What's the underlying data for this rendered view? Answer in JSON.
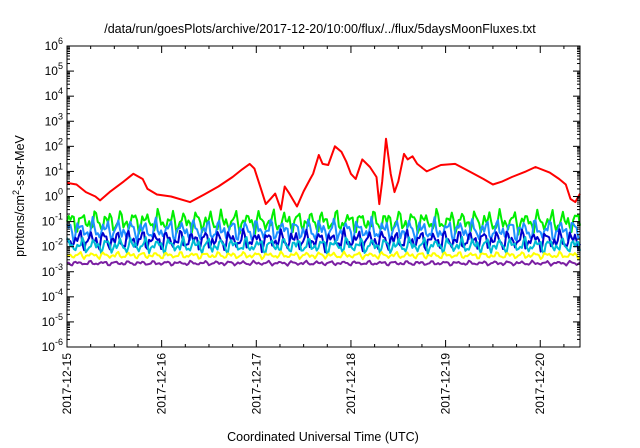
{
  "chart_data": {
    "type": "line",
    "title": "/data/run/goesPlots/archive/2017-12-20/10:00/flux/../flux/5daysMoonFluxes.txt",
    "xlabel": "Coordinated Universal Time (UTC)",
    "ylabel": "protons/cm²-s-sr-MeV",
    "yscale": "log",
    "ylim": [
      1e-06,
      1000000.0
    ],
    "xlim": [
      0,
      5.42
    ],
    "y_ticks": [
      {
        "value": -6,
        "base": "10",
        "exp": "-6"
      },
      {
        "value": -5,
        "base": "10",
        "exp": "-5"
      },
      {
        "value": -4,
        "base": "10",
        "exp": "-4"
      },
      {
        "value": -3,
        "base": "10",
        "exp": "-3"
      },
      {
        "value": -2,
        "base": "10",
        "exp": "-2"
      },
      {
        "value": -1,
        "base": "10",
        "exp": "-1"
      },
      {
        "value": 0,
        "base": "10",
        "exp": "0"
      },
      {
        "value": 1,
        "base": "10",
        "exp": "1"
      },
      {
        "value": 2,
        "base": "10",
        "exp": "2"
      },
      {
        "value": 3,
        "base": "10",
        "exp": "3"
      },
      {
        "value": 4,
        "base": "10",
        "exp": "4"
      },
      {
        "value": 5,
        "base": "10",
        "exp": "5"
      },
      {
        "value": 6,
        "base": "10",
        "exp": "6"
      }
    ],
    "x_ticks": [
      {
        "value": 0,
        "label": "2017-12-15"
      },
      {
        "value": 1,
        "label": "2017-12-16"
      },
      {
        "value": 2,
        "label": "2017-12-17"
      },
      {
        "value": 3,
        "label": "2017-12-18"
      },
      {
        "value": 4,
        "label": "2017-12-19"
      },
      {
        "value": 5,
        "label": "2017-12-20"
      }
    ],
    "grid": false,
    "legend": "none",
    "series": [
      {
        "color": "#ff0000",
        "points": [
          [
            0,
            3.5
          ],
          [
            0.1,
            3.0
          ],
          [
            0.2,
            1.5
          ],
          [
            0.3,
            1.0
          ],
          [
            0.35,
            0.7
          ],
          [
            0.45,
            1.5
          ],
          [
            0.6,
            4.0
          ],
          [
            0.7,
            8.0
          ],
          [
            0.8,
            5.0
          ],
          [
            0.85,
            2.0
          ],
          [
            0.95,
            1.2
          ],
          [
            1.1,
            1.0
          ],
          [
            1.3,
            0.6
          ],
          [
            1.45,
            1.2
          ],
          [
            1.6,
            2.5
          ],
          [
            1.75,
            6.0
          ],
          [
            1.85,
            12.0
          ],
          [
            1.93,
            20.0
          ],
          [
            1.98,
            13.0
          ],
          [
            2.05,
            2.0
          ],
          [
            2.1,
            0.5
          ],
          [
            2.15,
            0.8
          ],
          [
            2.2,
            1.3
          ],
          [
            2.26,
            0.3
          ],
          [
            2.3,
            2.5
          ],
          [
            2.35,
            1.3
          ],
          [
            2.43,
            0.4
          ],
          [
            2.5,
            1.6
          ],
          [
            2.57,
            5.0
          ],
          [
            2.6,
            8.0
          ],
          [
            2.66,
            45.0
          ],
          [
            2.7,
            20.0
          ],
          [
            2.76,
            18.0
          ],
          [
            2.83,
            100.0
          ],
          [
            2.9,
            60.0
          ],
          [
            2.95,
            25.0
          ],
          [
            3.0,
            8.0
          ],
          [
            3.05,
            5.0
          ],
          [
            3.12,
            30.0
          ],
          [
            3.2,
            15.0
          ],
          [
            3.27,
            6.0
          ],
          [
            3.3,
            0.5
          ],
          [
            3.33,
            4.0
          ],
          [
            3.37,
            200.0
          ],
          [
            3.42,
            8.0
          ],
          [
            3.46,
            1.5
          ],
          [
            3.5,
            4.0
          ],
          [
            3.56,
            50.0
          ],
          [
            3.6,
            30.0
          ],
          [
            3.65,
            40.0
          ],
          [
            3.7,
            20.0
          ],
          [
            3.8,
            10.0
          ],
          [
            3.95,
            18.0
          ],
          [
            4.1,
            20.0
          ],
          [
            4.25,
            10.0
          ],
          [
            4.4,
            5.0
          ],
          [
            4.5,
            3.0
          ],
          [
            4.6,
            4.0
          ],
          [
            4.7,
            6.0
          ],
          [
            4.85,
            10.0
          ],
          [
            4.95,
            15.0
          ],
          [
            5.1,
            9.0
          ],
          [
            5.2,
            5.0
          ],
          [
            5.27,
            3.0
          ],
          [
            5.32,
            0.8
          ],
          [
            5.37,
            0.6
          ],
          [
            5.42,
            1.3
          ]
        ]
      },
      {
        "color": "#00ee00",
        "base": 0.1,
        "amp": 0.5,
        "phase": 0.0
      },
      {
        "color": "#1e90ff",
        "base": 0.045,
        "amp": 0.5,
        "phase": 1.3
      },
      {
        "color": "#0000cc",
        "base": 0.018,
        "amp": 0.45,
        "phase": 2.1
      },
      {
        "color": "#00bcd4",
        "base": 0.011,
        "amp": 0.35,
        "phase": 0.7
      },
      {
        "color": "#ffff00",
        "base": 0.0045,
        "amp": 0.15,
        "phase": 1.9
      },
      {
        "color": "#7b1fa2",
        "base": 0.0022,
        "amp": 0.1,
        "phase": 2.6
      }
    ]
  }
}
